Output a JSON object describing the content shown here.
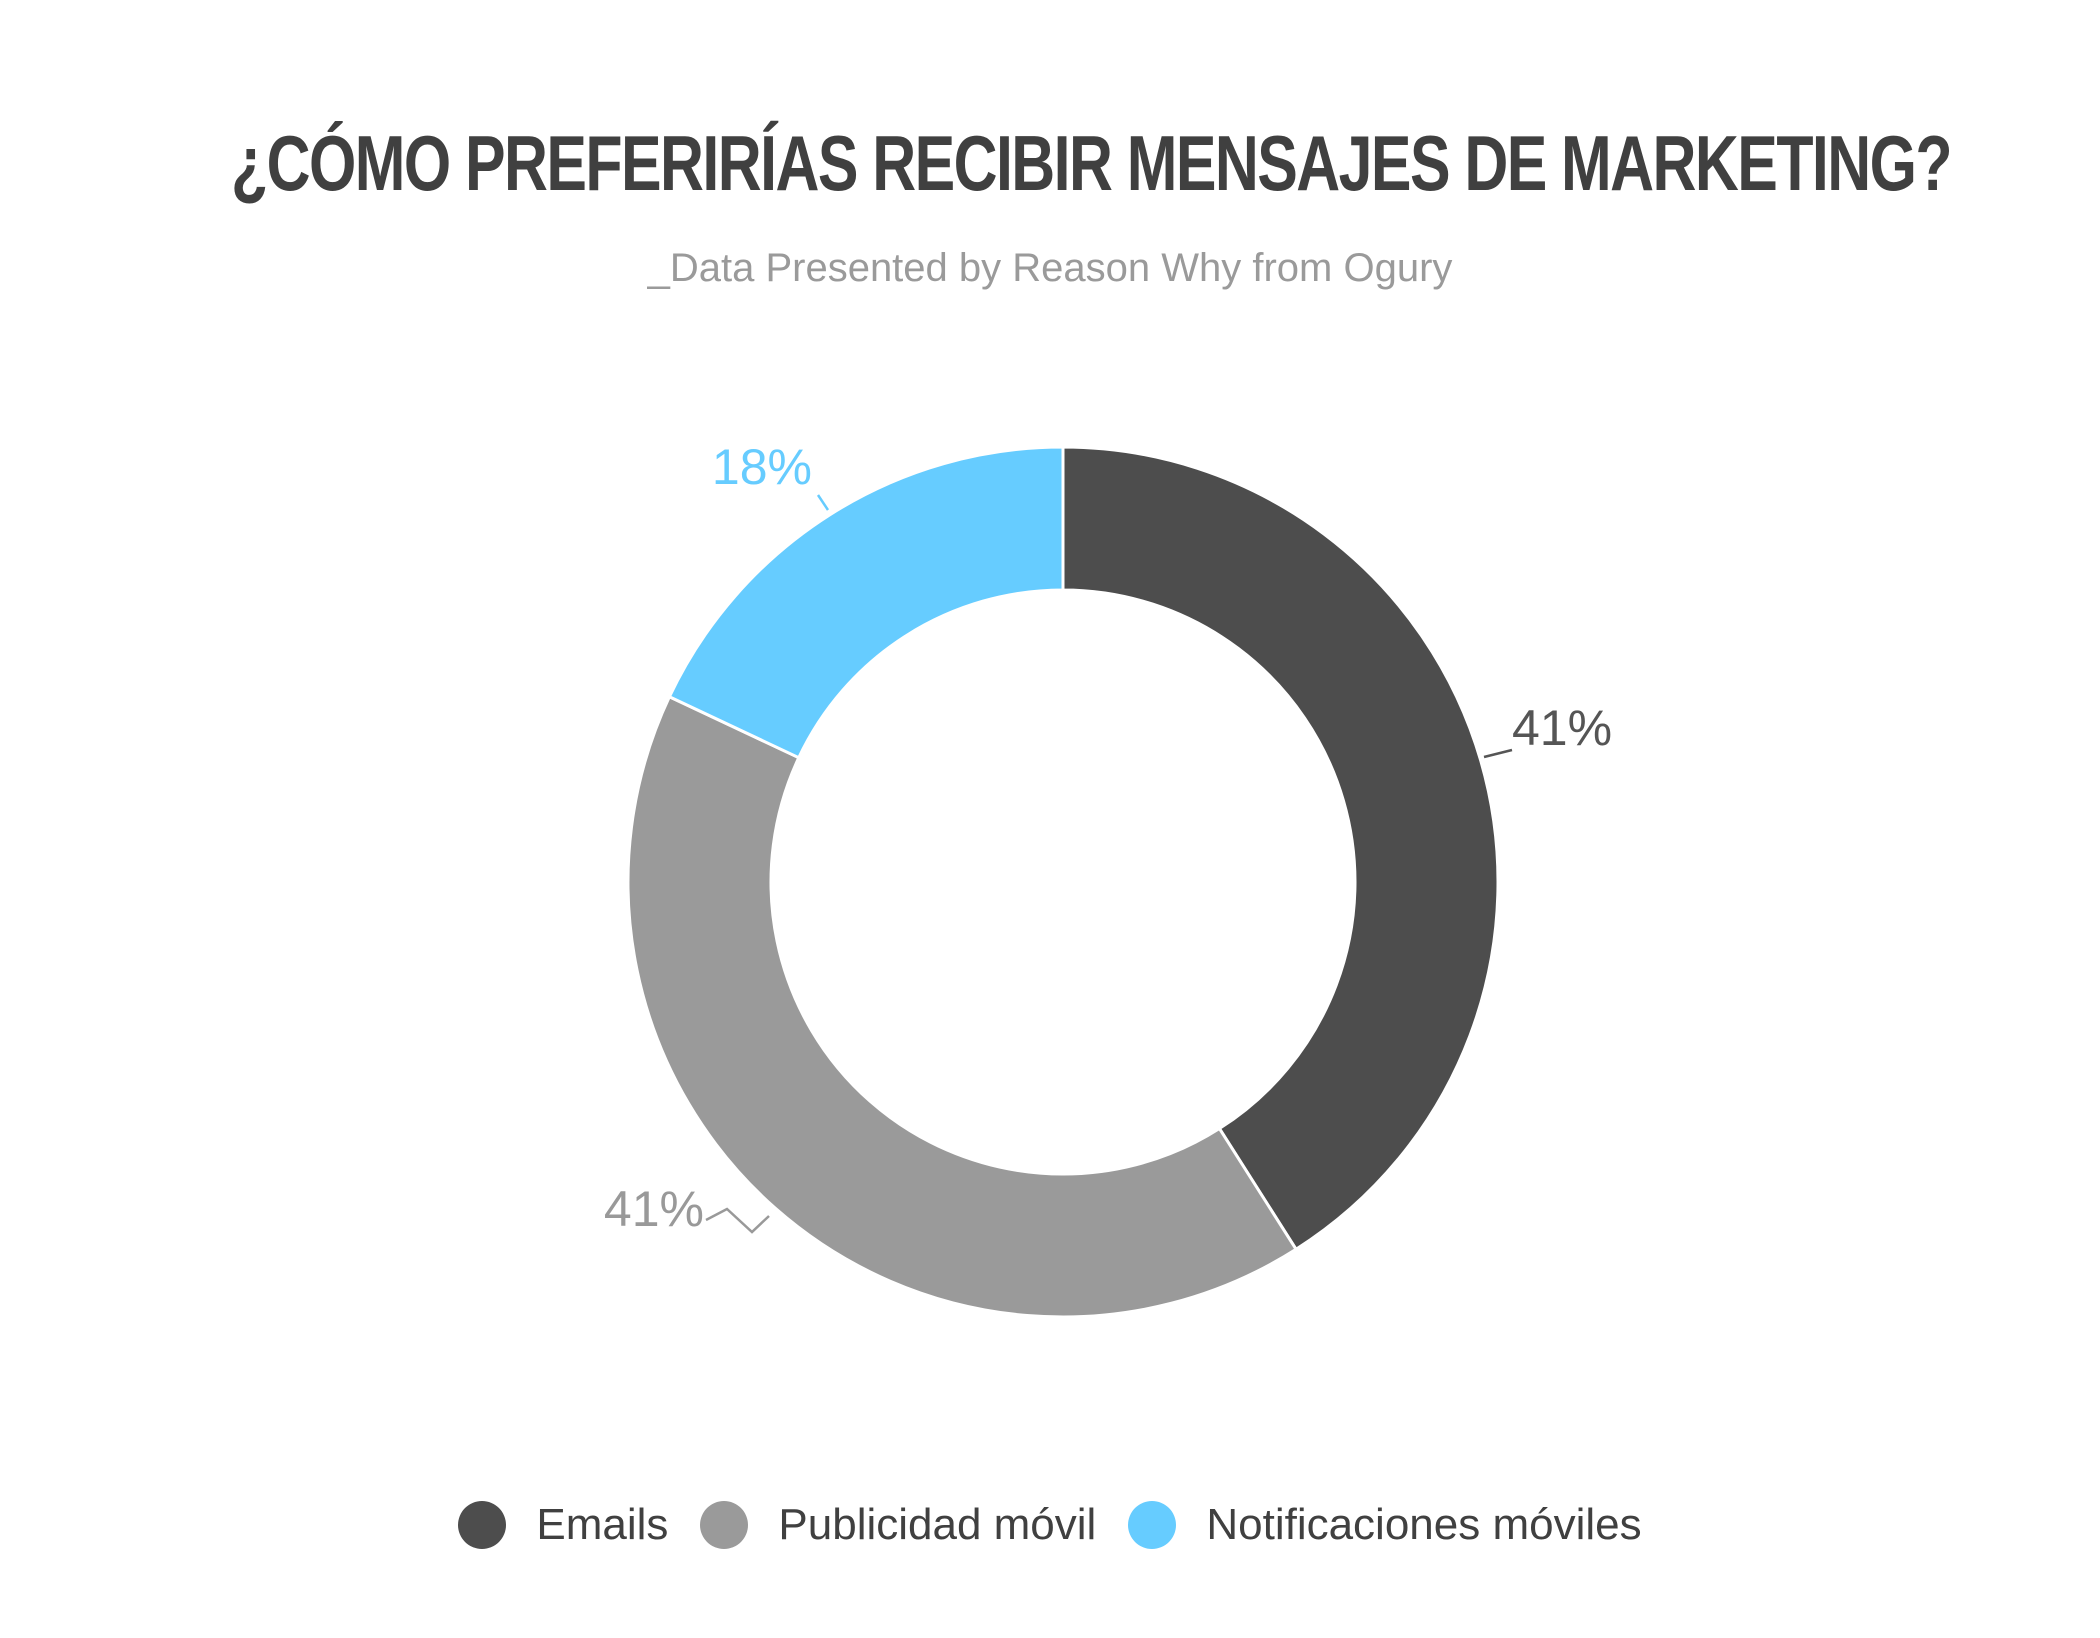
{
  "chart_data": {
    "type": "pie",
    "title": "¿CÓMO PREFERIRÍAS RECIBIR MENSAJES DE MARKETING?",
    "subtitle": "_Data Presented by Reason Why from Ogury",
    "donut": true,
    "legend_position": "bottom",
    "slices": [
      {
        "name": "Emails",
        "value": 41,
        "label": "41%",
        "color": "#4d4d4d"
      },
      {
        "name": "Publicidad móvil",
        "value": 41,
        "label": "41%",
        "color": "#9a9a9a"
      },
      {
        "name": "Notificaciones móviles",
        "value": 18,
        "label": "18%",
        "color": "#66ccff"
      }
    ]
  },
  "label_colors": {
    "Emails": "#555555",
    "Publicidad móvil": "#999999",
    "Notificaciones móviles": "#66ccff"
  }
}
